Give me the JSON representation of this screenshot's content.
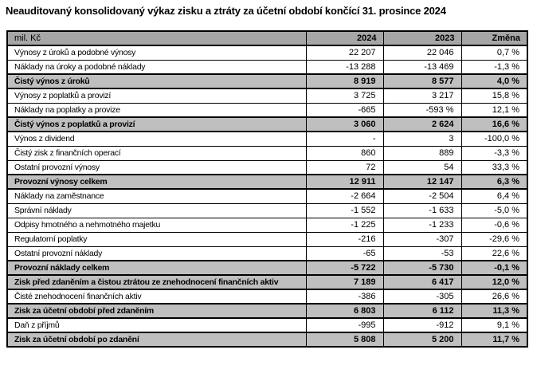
{
  "title": "Neauditovaný konsolidovaný výkaz zisku a ztráty za účetní období končící 31. prosince 2024",
  "colors": {
    "header_bg": "#a6a6a6",
    "subtotal_bg": "#bfbfbf",
    "border": "#000000"
  },
  "table": {
    "unit_label": "mil. Kč",
    "columns": [
      "2024",
      "2023",
      "Změna"
    ],
    "rows": [
      {
        "label": "Výnosy z úroků a podobné výnosy",
        "y2024": "22 207",
        "y2023": "22 046",
        "change": "0,7 %",
        "emphasis": false
      },
      {
        "label": "Náklady na úroky a podobné náklady",
        "y2024": "-13 288",
        "y2023": "-13 469",
        "change": "-1,3 %",
        "emphasis": false
      },
      {
        "label": "Čistý výnos z úroků",
        "y2024": "8 919",
        "y2023": "8 577",
        "change": "4,0 %",
        "emphasis": true
      },
      {
        "label": "Výnosy z poplatků a provizí",
        "y2024": "3 725",
        "y2023": "3 217",
        "change": "15,8 %",
        "emphasis": false
      },
      {
        "label": "Náklady na poplatky a provize",
        "y2024": "-665",
        "y2023": "-593 %",
        "change": "12,1 %",
        "emphasis": false
      },
      {
        "label": "Čistý výnos z poplatků a provizí",
        "y2024": "3 060",
        "y2023": "2 624",
        "change": "16,6 %",
        "emphasis": true
      },
      {
        "label": "Výnos z dividend",
        "y2024": "-",
        "y2023": "3",
        "change": "-100,0 %",
        "emphasis": false
      },
      {
        "label": "Čistý zisk z finančních operací",
        "y2024": "860",
        "y2023": "889",
        "change": "-3,3 %",
        "emphasis": false
      },
      {
        "label": "Ostatní provozní výnosy",
        "y2024": "72",
        "y2023": "54",
        "change": "33,3 %",
        "emphasis": false
      },
      {
        "label": "Provozní výnosy celkem",
        "y2024": "12 911",
        "y2023": "12 147",
        "change": "6,3 %",
        "emphasis": true
      },
      {
        "label": "Náklady na zaměstnance",
        "y2024": "-2 664",
        "y2023": "-2 504",
        "change": "6,4 %",
        "emphasis": false
      },
      {
        "label": "Správní náklady",
        "y2024": "-1 552",
        "y2023": "-1 633",
        "change": "-5,0 %",
        "emphasis": false
      },
      {
        "label": "Odpisy hmotného a nehmotného majetku",
        "y2024": "-1 225",
        "y2023": "-1 233",
        "change": "-0,6 %",
        "emphasis": false
      },
      {
        "label": "Regulatorní poplatky",
        "y2024": "-216",
        "y2023": "-307",
        "change": "-29,6 %",
        "emphasis": false
      },
      {
        "label": "Ostatní provozní náklady",
        "y2024": "-65",
        "y2023": "-53",
        "change": "22,6 %",
        "emphasis": false
      },
      {
        "label": "Provozní náklady celkem",
        "y2024": "-5 722",
        "y2023": "-5 730",
        "change": "-0,1 %",
        "emphasis": true
      },
      {
        "label": "Zisk před zdaněním a čistou ztrátou ze znehodnocení finančních aktiv",
        "y2024": "7 189",
        "y2023": "6 417",
        "change": "12,0 %",
        "emphasis": true
      },
      {
        "label": "Čisté znehodnocení finančních aktiv",
        "y2024": "-386",
        "y2023": "-305",
        "change": "26,6 %",
        "emphasis": false
      },
      {
        "label": "Zisk za účetní období před zdaněním",
        "y2024": "6 803",
        "y2023": "6 112",
        "change": "11,3 %",
        "emphasis": true
      },
      {
        "label": "Daň z příjmů",
        "y2024": "-995",
        "y2023": "-912",
        "change": "9,1 %",
        "emphasis": false
      },
      {
        "label": "Zisk za účetní období po zdanění",
        "y2024": "5 808",
        "y2023": "5 200",
        "change": "11,7 %",
        "emphasis": true
      }
    ]
  }
}
